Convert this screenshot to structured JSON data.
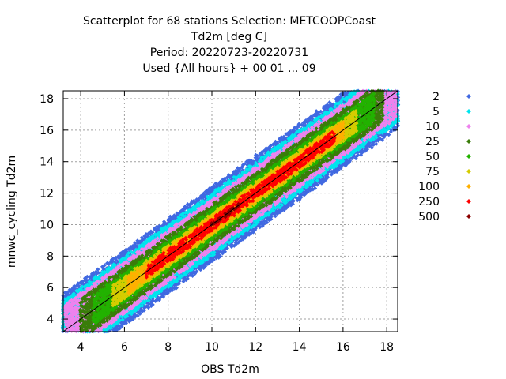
{
  "chart_data": {
    "type": "scatter",
    "title_lines": [
      "Scatterplot for   68 stations Selection: METCOOPCoast",
      "Td2m [deg C]",
      "Period: 20220723-20220731",
      "Used {All hours} + 00 01 ... 09"
    ],
    "xlabel": "OBS Td2m",
    "ylabel": "mnwc_cycling Td2m",
    "xlim": [
      3.2,
      18.5
    ],
    "ylim": [
      3.2,
      18.5
    ],
    "xticks": [
      4,
      6,
      8,
      10,
      12,
      14,
      16,
      18
    ],
    "yticks": [
      4,
      6,
      8,
      10,
      12,
      14,
      16,
      18
    ],
    "grid": true,
    "diagonal_line": true,
    "legend_position": "right",
    "series": [
      {
        "name": "2",
        "color": "#4169e1",
        "halfwidth": 2.4
      },
      {
        "name": "5",
        "color": "#00e5ee",
        "halfwidth": 2.0
      },
      {
        "name": "10",
        "color": "#ee82ee",
        "halfwidth": 1.65
      },
      {
        "name": "25",
        "color": "#3a7d0a",
        "halfwidth": 1.3
      },
      {
        "name": "50",
        "color": "#22b200",
        "halfwidth": 0.95
      },
      {
        "name": "75",
        "color": "#d5cc00",
        "halfwidth": 0.7
      },
      {
        "name": "100",
        "color": "#ffb000",
        "halfwidth": 0.55
      },
      {
        "name": "250",
        "color": "#ff0000",
        "halfwidth": 0.4
      },
      {
        "name": "500",
        "color": "#8b0000",
        "halfwidth": 0.12
      }
    ],
    "density_bands": [
      {
        "series": "2",
        "x_range": [
          3.2,
          18.5
        ]
      },
      {
        "series": "5",
        "x_range": [
          3.2,
          18.5
        ]
      },
      {
        "series": "10",
        "x_range": [
          3.3,
          18.4
        ]
      },
      {
        "series": "25",
        "x_range": [
          4.0,
          17.8
        ]
      },
      {
        "series": "50",
        "x_range": [
          4.6,
          17.4
        ]
      },
      {
        "series": "75",
        "x_range": [
          5.5,
          16.6
        ]
      },
      {
        "series": "100",
        "x_range": [
          6.2,
          16.0
        ]
      },
      {
        "series": "250",
        "x_range": [
          7.0,
          15.6
        ]
      },
      {
        "series": "500",
        "x_range": [
          10.0,
          11.2
        ]
      }
    ]
  }
}
